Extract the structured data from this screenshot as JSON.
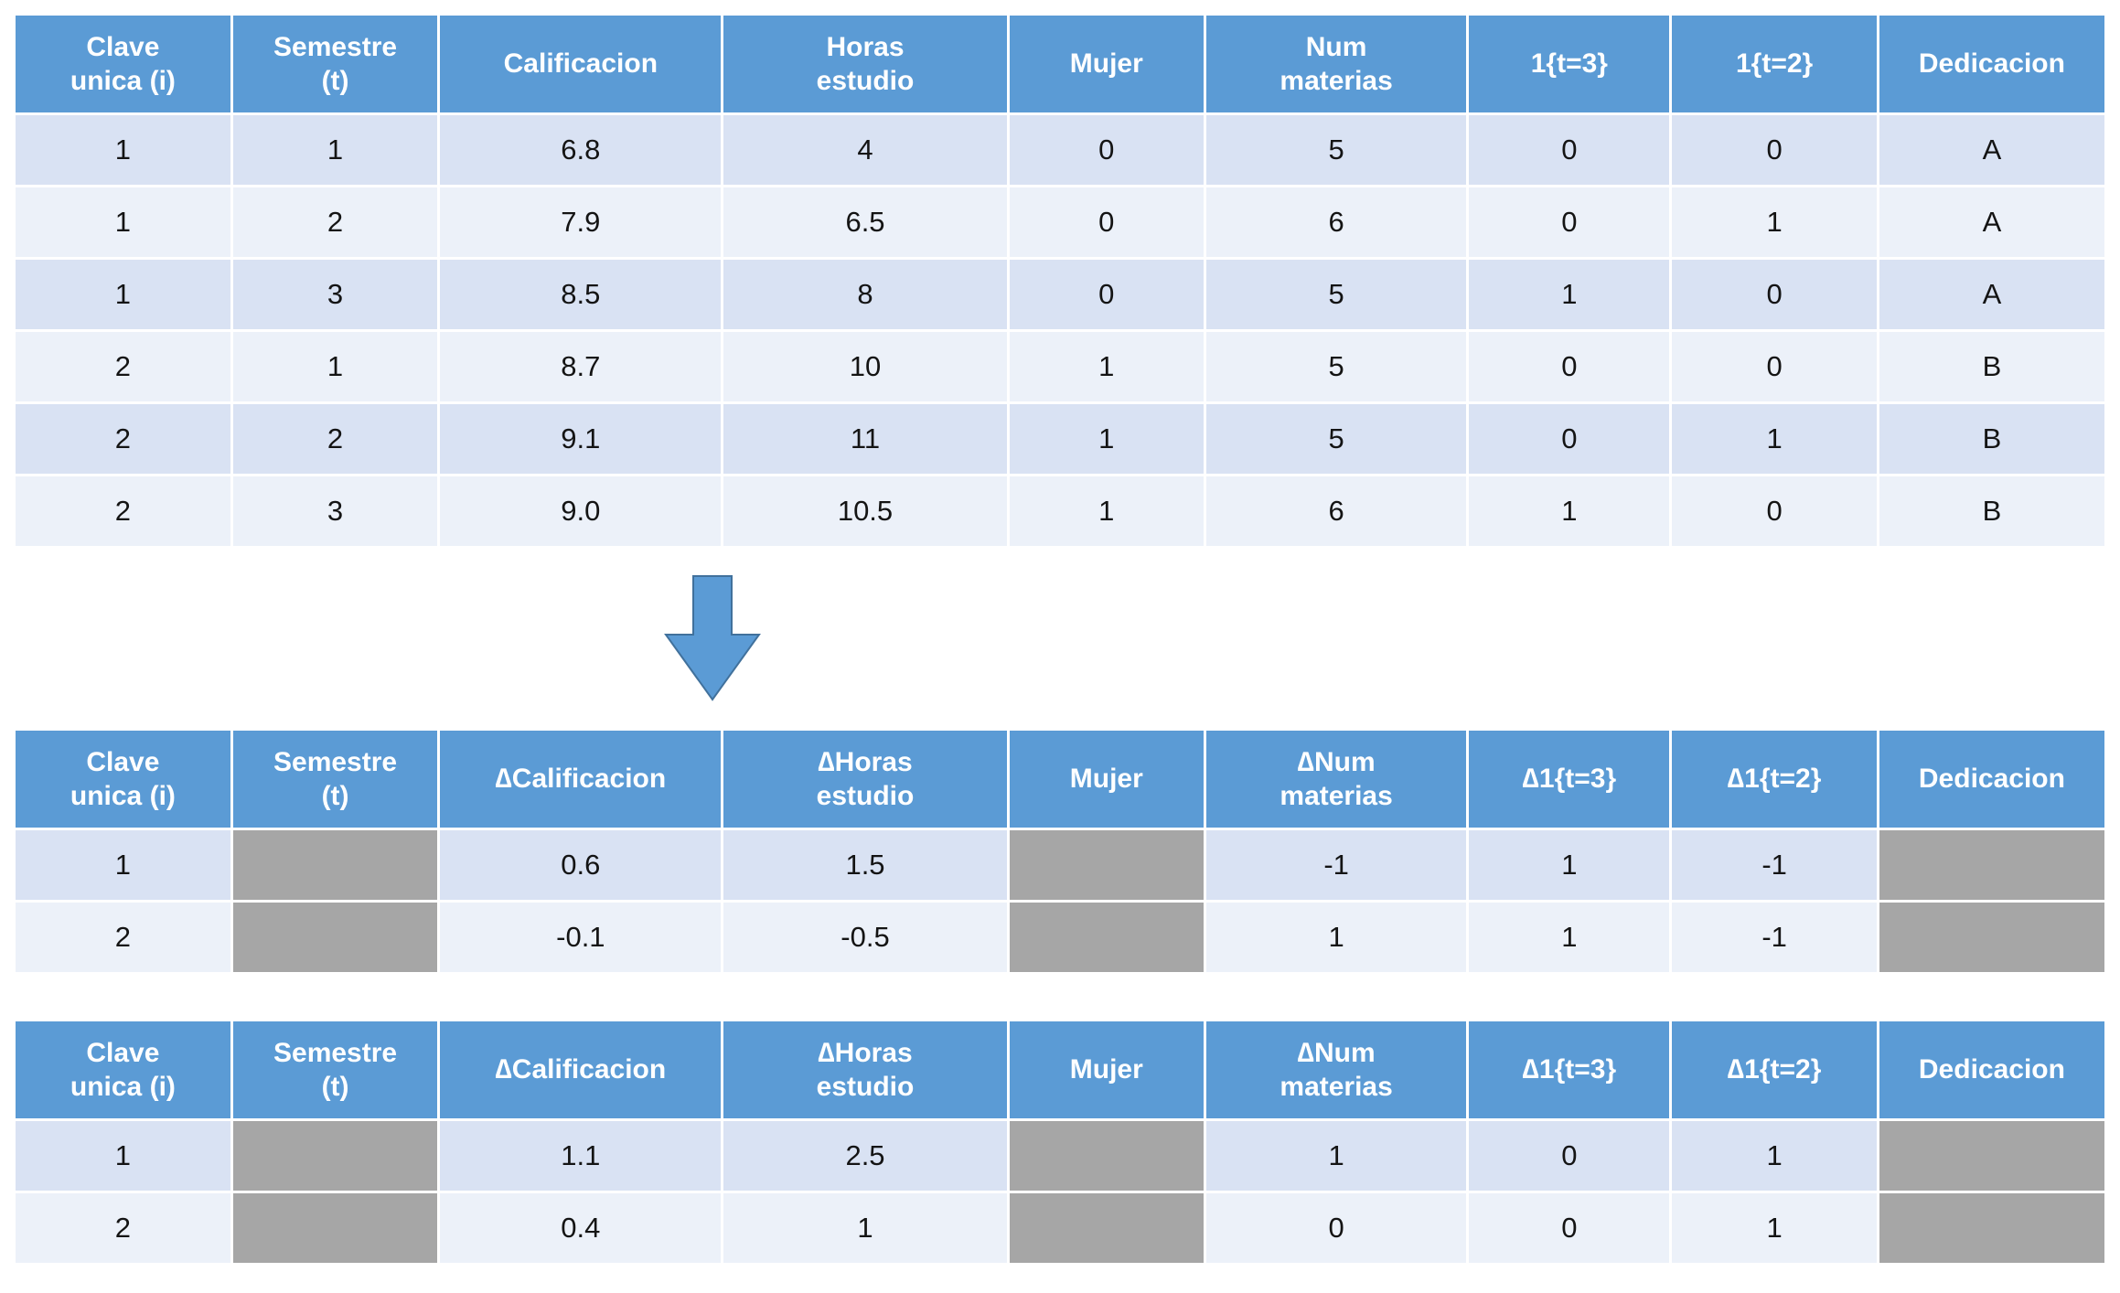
{
  "colors": {
    "header_bg": "#5B9BD5",
    "header_text": "#FFFFFF",
    "body_text": "#141414",
    "row_odd": "#D9E2F3",
    "row_even": "#ECF1F9",
    "masked": "#A6A6A6",
    "arrow_fill": "#5B9BD5",
    "arrow_stroke": "#41719C"
  },
  "icons": {
    "down_arrow": "block-down-arrow"
  },
  "chart_data": [
    {
      "type": "table",
      "name": "original-panel-data",
      "headers": [
        "Clave\nunica (i)",
        "Semestre\n(t)",
        "Calificacion",
        "Horas\nestudio",
        "Mujer",
        "Num\nmaterias",
        "1{t=3}",
        "1{t=2}",
        "Dedicacion"
      ],
      "rows": [
        [
          "1",
          "1",
          "6.8",
          "4",
          "0",
          "5",
          "0",
          "0",
          "A"
        ],
        [
          "1",
          "2",
          "7.9",
          "6.5",
          "0",
          "6",
          "0",
          "1",
          "A"
        ],
        [
          "1",
          "3",
          "8.5",
          "8",
          "0",
          "5",
          "1",
          "0",
          "A"
        ],
        [
          "2",
          "1",
          "8.7",
          "10",
          "1",
          "5",
          "0",
          "0",
          "B"
        ],
        [
          "2",
          "2",
          "9.1",
          "11",
          "1",
          "5",
          "0",
          "1",
          "B"
        ],
        [
          "2",
          "3",
          "9.0",
          "10.5",
          "1",
          "6",
          "1",
          "0",
          "B"
        ]
      ]
    },
    {
      "type": "table",
      "name": "first-differenced-table-a",
      "headers": [
        "Clave\nunica (i)",
        "Semestre\n(t)",
        "∆Calificacion",
        "∆Horas\nestudio",
        "Mujer",
        "∆Num\nmaterias",
        "∆1{t=3}",
        "∆1{t=2}",
        "Dedicacion"
      ],
      "rows": [
        [
          "1",
          null,
          "0.6",
          "1.5",
          null,
          "-1",
          "1",
          "-1",
          null
        ],
        [
          "2",
          null,
          "-0.1",
          "-0.5",
          null,
          "1",
          "1",
          "-1",
          null
        ]
      ]
    },
    {
      "type": "table",
      "name": "first-differenced-table-b",
      "headers": [
        "Clave\nunica (i)",
        "Semestre\n(t)",
        "∆Calificacion",
        "∆Horas\nestudio",
        "Mujer",
        "∆Num\nmaterias",
        "∆1{t=3}",
        "∆1{t=2}",
        "Dedicacion"
      ],
      "rows": [
        [
          "1",
          null,
          "1.1",
          "2.5",
          null,
          "1",
          "0",
          "1",
          null
        ],
        [
          "2",
          null,
          "0.4",
          "1",
          null,
          "0",
          "0",
          "1",
          null
        ]
      ]
    }
  ]
}
